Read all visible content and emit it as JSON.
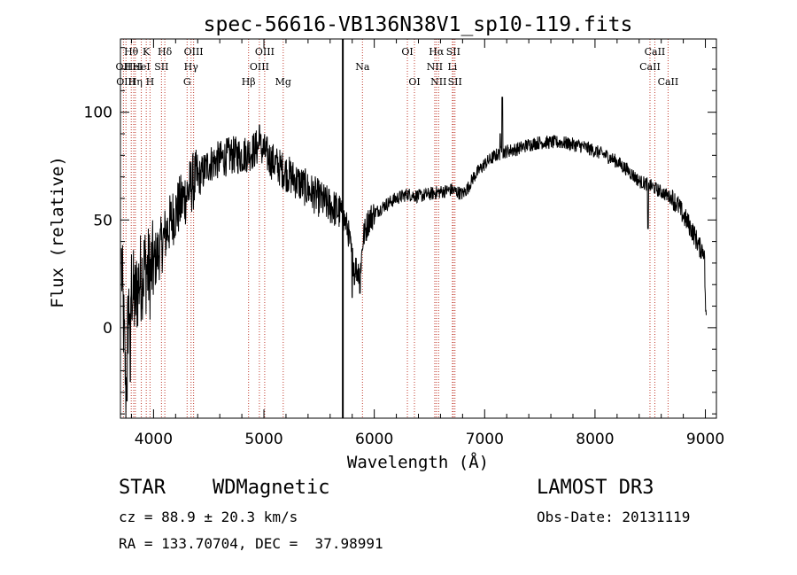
{
  "chart_data": {
    "type": "line",
    "title": "spec-56616-VB136N38V1_sp10-119.fits",
    "xlabel": "Wavelength (Å)",
    "ylabel": "Flux (relative)",
    "xlim": [
      3700,
      9100
    ],
    "ylim": [
      -42,
      134
    ],
    "xticks": [
      4000,
      5000,
      6000,
      7000,
      8000,
      9000
    ],
    "yticks": [
      0,
      50,
      100
    ],
    "grid": false,
    "marker_line": 5715,
    "spectrum_anchors": [
      [
        3710,
        30
      ],
      [
        3730,
        0
      ],
      [
        3750,
        -30
      ],
      [
        3770,
        5
      ],
      [
        3800,
        20
      ],
      [
        3830,
        12
      ],
      [
        3870,
        22
      ],
      [
        3920,
        28
      ],
      [
        3970,
        25
      ],
      [
        4020,
        32
      ],
      [
        4070,
        38
      ],
      [
        4120,
        45
      ],
      [
        4180,
        52
      ],
      [
        4250,
        58
      ],
      [
        4300,
        62
      ],
      [
        4360,
        68
      ],
      [
        4420,
        70
      ],
      [
        4500,
        76
      ],
      [
        4600,
        78
      ],
      [
        4700,
        80
      ],
      [
        4800,
        80
      ],
      [
        4900,
        82
      ],
      [
        4950,
        84
      ],
      [
        5000,
        82
      ],
      [
        5060,
        78
      ],
      [
        5150,
        74
      ],
      [
        5250,
        70
      ],
      [
        5350,
        66
      ],
      [
        5450,
        62
      ],
      [
        5550,
        58
      ],
      [
        5650,
        55
      ],
      [
        5700,
        53
      ],
      [
        5730,
        50
      ],
      [
        5760,
        46
      ],
      [
        5800,
        32
      ],
      [
        5850,
        26
      ],
      [
        5880,
        30
      ],
      [
        5900,
        42
      ],
      [
        5950,
        50
      ],
      [
        6000,
        53
      ],
      [
        6100,
        57
      ],
      [
        6200,
        60
      ],
      [
        6300,
        62
      ],
      [
        6400,
        61
      ],
      [
        6500,
        62
      ],
      [
        6600,
        63
      ],
      [
        6700,
        64
      ],
      [
        6800,
        62
      ],
      [
        6850,
        65
      ],
      [
        6900,
        70
      ],
      [
        7000,
        76
      ],
      [
        7100,
        80
      ],
      [
        7200,
        82
      ],
      [
        7300,
        83
      ],
      [
        7400,
        85
      ],
      [
        7500,
        86
      ],
      [
        7600,
        86
      ],
      [
        7700,
        86
      ],
      [
        7800,
        85
      ],
      [
        7900,
        84
      ],
      [
        8000,
        82
      ],
      [
        8100,
        80
      ],
      [
        8200,
        77
      ],
      [
        8300,
        73
      ],
      [
        8400,
        68
      ],
      [
        8500,
        66
      ],
      [
        8600,
        63
      ],
      [
        8700,
        60
      ],
      [
        8750,
        57
      ],
      [
        8800,
        52
      ],
      [
        8850,
        48
      ],
      [
        8900,
        43
      ],
      [
        8950,
        37
      ],
      [
        8990,
        36
      ],
      [
        9000,
        12
      ],
      [
        9010,
        0
      ]
    ],
    "spectrum_features": [
      {
        "x": 5800,
        "y": 14
      },
      {
        "x": 5820,
        "y": 20
      },
      {
        "x": 5870,
        "y": 16
      },
      {
        "x": 7160,
        "y": 107
      },
      {
        "x": 7140,
        "y": 90
      },
      {
        "x": 8480,
        "y": 46
      },
      {
        "x": 3760,
        "y": -34
      },
      {
        "x": 3790,
        "y": -25
      },
      {
        "x": 4960,
        "y": 94
      }
    ],
    "spectral_lines": [
      {
        "wavelength": 3727,
        "label": "OII",
        "row": 2
      },
      {
        "wavelength": 3750,
        "label": "OIII",
        "row": 3
      },
      {
        "wavelength": 3798,
        "label": "Hθ",
        "row": 1
      },
      {
        "wavelength": 3820,
        "label": "HeI",
        "row": 2
      },
      {
        "wavelength": 3835,
        "label": "Hη",
        "row": 3
      },
      {
        "wavelength": 3889,
        "label": "HeI",
        "row": 2
      },
      {
        "wavelength": 3934,
        "label": "K",
        "row": 1
      },
      {
        "wavelength": 3968,
        "label": "H",
        "row": 3
      },
      {
        "wavelength": 4072,
        "label": "SII",
        "row": 2
      },
      {
        "wavelength": 4102,
        "label": "Hδ",
        "row": 1
      },
      {
        "wavelength": 4304,
        "label": "G",
        "row": 3
      },
      {
        "wavelength": 4340,
        "label": "Hγ",
        "row": 2
      },
      {
        "wavelength": 4363,
        "label": "OIII",
        "row": 1
      },
      {
        "wavelength": 4861,
        "label": "Hβ",
        "row": 3
      },
      {
        "wavelength": 4959,
        "label": "OIII",
        "row": 2
      },
      {
        "wavelength": 5007,
        "label": "OIII",
        "row": 1
      },
      {
        "wavelength": 5175,
        "label": "Mg",
        "row": 3
      },
      {
        "wavelength": 5893,
        "label": "Na",
        "row": 2
      },
      {
        "wavelength": 6300,
        "label": "OI",
        "row": 1
      },
      {
        "wavelength": 6364,
        "label": "OI",
        "row": 3
      },
      {
        "wavelength": 6548,
        "label": "NII",
        "row": 2
      },
      {
        "wavelength": 6563,
        "label": "Hα",
        "row": 1
      },
      {
        "wavelength": 6583,
        "label": "NII",
        "row": 3
      },
      {
        "wavelength": 6708,
        "label": "Li",
        "row": 2
      },
      {
        "wavelength": 6716,
        "label": "SII",
        "row": 1
      },
      {
        "wavelength": 6731,
        "label": "SII",
        "row": 3
      },
      {
        "wavelength": 8498,
        "label": "CaII",
        "row": 2
      },
      {
        "wavelength": 8542,
        "label": "CaII",
        "row": 1
      },
      {
        "wavelength": 8662,
        "label": "CaII",
        "row": 3
      }
    ]
  },
  "info": {
    "class": "STAR",
    "subclass": "WDMagnetic",
    "survey": "LAMOST DR3",
    "redshift": "cz = 88.9 ± 20.3 km/s",
    "obsdate": "Obs-Date: 20131119",
    "coords": "RA = 133.70704, DEC =  37.98991"
  }
}
